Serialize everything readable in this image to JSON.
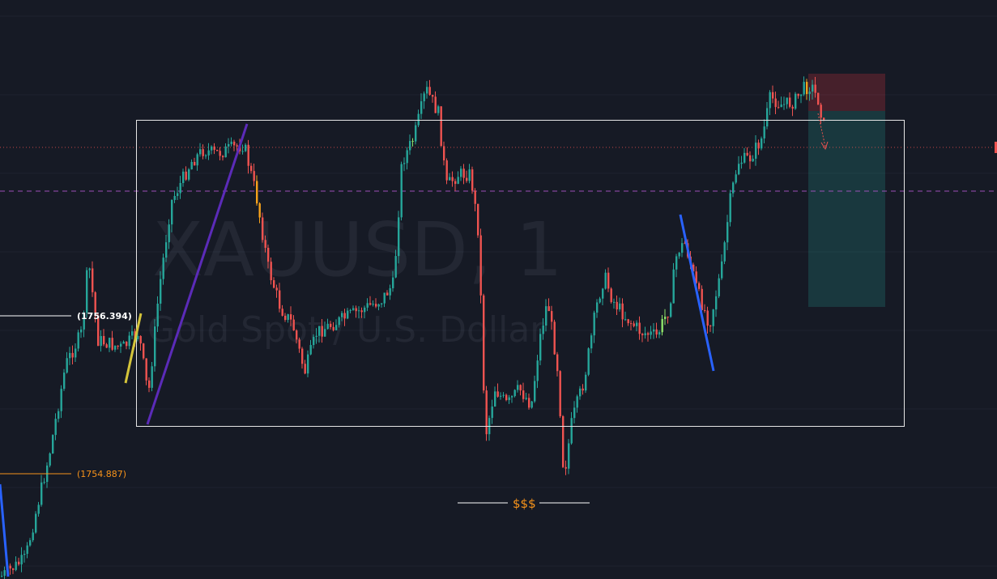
{
  "watermark": {
    "symbol": "XAUUSD, 1",
    "description": "Gold Spot / U.S. Dollar"
  },
  "levels": [
    {
      "label": "(1756.394)",
      "price": 1756.394,
      "color": "#ffffff"
    },
    {
      "label": "(1754.887)",
      "price": 1754.887,
      "color": "#f7931a"
    }
  ],
  "liquidity_label": "$$$",
  "colors": {
    "background": "#161a25",
    "bullish": "#26a69a",
    "bearish": "#ef5350",
    "range_box": "#e6e6e6",
    "trend_purple": "#5b2bb8",
    "trend_blue": "#2962ff",
    "trend_yellow": "#d4c43a",
    "stop_zone": "rgba(242,54,69,0.25)",
    "target_zone": "rgba(38,166,154,0.25)"
  },
  "chart_data": {
    "type": "candlestick",
    "symbol": "XAUUSD",
    "timeframe": "1",
    "ylim": [
      1753.0,
      1759.7
    ],
    "candles": []
  }
}
